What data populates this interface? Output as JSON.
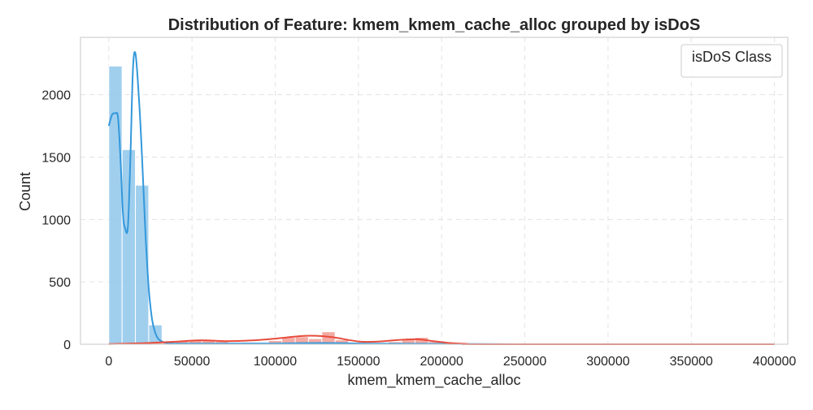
{
  "chart_data": {
    "type": "histogram",
    "title": "Distribution of Feature: kmem_kmem_cache_alloc grouped by isDoS",
    "xlabel": "kmem_kmem_cache_alloc",
    "ylabel": "Count",
    "xlim": [
      -17000,
      408000
    ],
    "ylim": [
      0,
      2460
    ],
    "x_ticks": [
      0,
      50000,
      100000,
      150000,
      200000,
      250000,
      300000,
      350000,
      400000
    ],
    "x_tick_labels": [
      "0",
      "50000",
      "100000",
      "150000",
      "200000",
      "250000",
      "300000",
      "350000",
      "400000"
    ],
    "y_ticks": [
      0,
      500,
      1000,
      1500,
      2000
    ],
    "y_tick_labels": [
      "0",
      "500",
      "1000",
      "1500",
      "2000"
    ],
    "grid": true,
    "legend": {
      "title": "isDoS Class",
      "position": "top-right",
      "entries": []
    },
    "bin_width": 8000,
    "series": [
      {
        "color_fill": "#85C1E9",
        "color_line": "#3498DB",
        "bins": [
          [
            0,
            2230
          ],
          [
            8000,
            1560
          ],
          [
            16000,
            1275
          ],
          [
            24000,
            155
          ],
          [
            32000,
            8
          ],
          [
            40000,
            15
          ],
          [
            48000,
            10
          ],
          [
            56000,
            12
          ],
          [
            64000,
            10
          ],
          [
            72000,
            15
          ],
          [
            80000,
            10
          ],
          [
            88000,
            8
          ],
          [
            96000,
            10
          ],
          [
            104000,
            8
          ],
          [
            112000,
            10
          ],
          [
            120000,
            18
          ],
          [
            128000,
            8
          ],
          [
            136000,
            12
          ],
          [
            144000,
            6
          ],
          [
            152000,
            8
          ],
          [
            160000,
            5
          ],
          [
            168000,
            3
          ],
          [
            176000,
            6
          ],
          [
            184000,
            5
          ],
          [
            192000,
            8
          ],
          [
            200000,
            3
          ],
          [
            208000,
            2
          ]
        ],
        "kde": [
          [
            0,
            1750
          ],
          [
            2000,
            1840
          ],
          [
            4000,
            1850
          ],
          [
            5500,
            1820
          ],
          [
            7000,
            1500
          ],
          [
            8500,
            1050
          ],
          [
            9800,
            930
          ],
          [
            11500,
            940
          ],
          [
            13000,
            1500
          ],
          [
            14500,
            2200
          ],
          [
            16000,
            2330
          ],
          [
            18000,
            2000
          ],
          [
            20000,
            1500
          ],
          [
            22000,
            900
          ],
          [
            24000,
            450
          ],
          [
            26000,
            200
          ],
          [
            28000,
            90
          ],
          [
            30000,
            40
          ],
          [
            34000,
            12
          ],
          [
            40000,
            5
          ],
          [
            60000,
            5
          ],
          [
            100000,
            6
          ],
          [
            130000,
            10
          ],
          [
            160000,
            5
          ],
          [
            200000,
            3
          ],
          [
            250000,
            0
          ],
          [
            400000,
            0
          ]
        ]
      },
      {
        "color_fill": "#F1948A",
        "color_line": "#E74C3C",
        "bins": [
          [
            0,
            5
          ],
          [
            8000,
            8
          ],
          [
            16000,
            10
          ],
          [
            24000,
            12
          ],
          [
            32000,
            15
          ],
          [
            40000,
            25
          ],
          [
            48000,
            35
          ],
          [
            56000,
            30
          ],
          [
            64000,
            22
          ],
          [
            72000,
            12
          ],
          [
            80000,
            15
          ],
          [
            88000,
            10
          ],
          [
            96000,
            30
          ],
          [
            104000,
            55
          ],
          [
            112000,
            60
          ],
          [
            120000,
            45
          ],
          [
            128000,
            100
          ],
          [
            136000,
            35
          ],
          [
            144000,
            10
          ],
          [
            152000,
            8
          ],
          [
            160000,
            5
          ],
          [
            168000,
            20
          ],
          [
            176000,
            40
          ],
          [
            184000,
            55
          ],
          [
            192000,
            20
          ],
          [
            200000,
            8
          ],
          [
            208000,
            5
          ]
        ],
        "kde": [
          [
            0,
            2
          ],
          [
            20000,
            8
          ],
          [
            40000,
            20
          ],
          [
            55000,
            32
          ],
          [
            70000,
            25
          ],
          [
            85000,
            30
          ],
          [
            100000,
            45
          ],
          [
            115000,
            65
          ],
          [
            125000,
            68
          ],
          [
            135000,
            55
          ],
          [
            150000,
            22
          ],
          [
            160000,
            20
          ],
          [
            175000,
            35
          ],
          [
            185000,
            40
          ],
          [
            195000,
            25
          ],
          [
            205000,
            10
          ],
          [
            215000,
            3
          ],
          [
            230000,
            0
          ],
          [
            400000,
            0
          ]
        ]
      }
    ]
  }
}
